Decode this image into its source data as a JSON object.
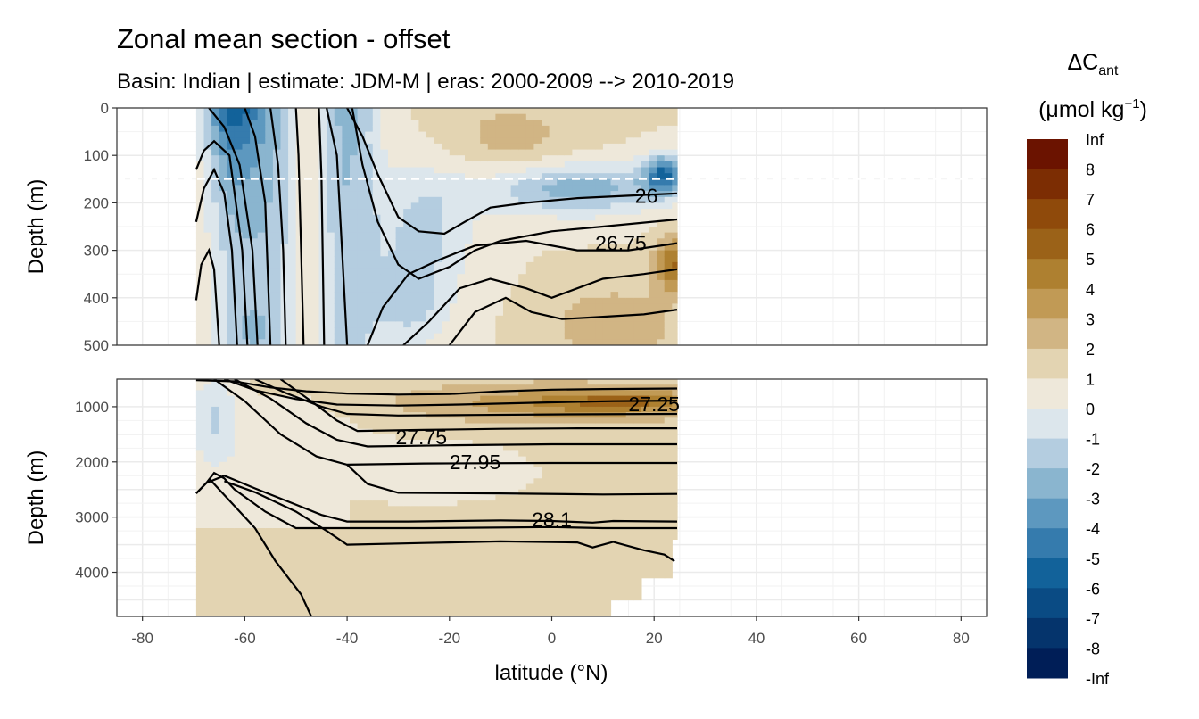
{
  "chart_data": {
    "type": "heatmap",
    "title": "Zonal mean section - offset",
    "subtitle": "Basin: Indian | estimate: JDM-M | eras: 2000-2009 --> 2010-2019",
    "xlabel": "latitude (°N)",
    "ylabel_top": "Depth (m)",
    "ylabel_bottom": "Depth (m)",
    "xlim": [
      -85,
      85
    ],
    "x_ticks": [
      -80,
      -60,
      -40,
      -20,
      0,
      20,
      40,
      60,
      80
    ],
    "data_lat_range": [
      -69.5,
      24.5
    ],
    "panels": [
      {
        "name": "upper",
        "ylim": [
          0,
          500
        ],
        "y_ticks": [
          0,
          100,
          200,
          300,
          400,
          500
        ],
        "reference_line_depth": 150
      },
      {
        "name": "lower",
        "ylim": [
          500,
          4800
        ],
        "y_ticks": [
          1000,
          2000,
          3000,
          4000
        ]
      }
    ],
    "legend": {
      "title_main": "ΔC",
      "title_sub": "ant",
      "unit_main": "(μmol kg",
      "unit_sup": "−1",
      "unit_end": ")",
      "placement": "right",
      "labels": [
        "Inf",
        "8",
        "7",
        "6",
        "5",
        "4",
        "3",
        "2",
        "1",
        "0",
        "-1",
        "-2",
        "-3",
        "-4",
        "-5",
        "-6",
        "-7",
        "-8",
        "-Inf"
      ],
      "colors": [
        "#6b1300",
        "#7c2d03",
        "#8f4a0b",
        "#9b6218",
        "#ae8030",
        "#c19a55",
        "#d1b584",
        "#e3d4b2",
        "#eee8da",
        "#dce6ec",
        "#b4cde0",
        "#8ab5cf",
        "#5d98bf",
        "#357bad",
        "#12629a",
        "#0a4b84",
        "#05346c",
        "#001e57"
      ]
    },
    "contour_labels": [
      {
        "text": "26",
        "lat": 18.5,
        "depth": 185
      },
      {
        "text": "26.75",
        "lat": 13.5,
        "depth": 285
      },
      {
        "text": "27.25",
        "lat": 20,
        "depth": 950
      },
      {
        "text": "27.75",
        "lat": -25.5,
        "depth": 1550
      },
      {
        "text": "27.95",
        "lat": -15,
        "depth": 2000
      },
      {
        "text": "28.1",
        "lat": 0,
        "depth": 3050
      }
    ]
  }
}
